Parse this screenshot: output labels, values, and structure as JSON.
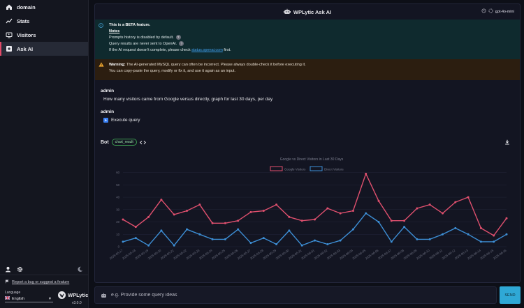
{
  "sidebar": {
    "items": [
      {
        "label": "domain",
        "icon": "home-icon"
      },
      {
        "label": "Stats",
        "icon": "chart-line-icon"
      },
      {
        "label": "Visitors",
        "icon": "monitor-icon"
      },
      {
        "label": "Ask AI",
        "icon": "plus-square-icon"
      }
    ],
    "bug_link": "Report a bug or suggest a feature",
    "language_label": "Language",
    "language_value": "English",
    "brand": "WPLytic",
    "version": "v3.0.0"
  },
  "header": {
    "title": "WPLytic Ask AI",
    "model": "gpt-4o-mini"
  },
  "info": {
    "beta": "This is a BETA feature.",
    "notes": "Notes",
    "note1": "Prompts history is disabled by default.",
    "note2": "Query results are never sent to OpenAI.",
    "note3_pre": "If the AI request doesn't complete, please check ",
    "note3_link": "status.openai.com",
    "note3_post": " first."
  },
  "warning": {
    "label": "Warning:",
    "text1": " The AI-generated MySQL query can often be incorrect. Please always double-check it before executing it.",
    "text2": "You can copy-paste the query, modify or fix it, and use it again as an input."
  },
  "messages": {
    "m1_author": "admin",
    "m1_text": "How many visitors came from Google versus directly, graph for last 30 days, per day",
    "m2_author": "admin",
    "m2_action": "Execute query",
    "bot_author": "Bot",
    "bot_badge": "chart_result"
  },
  "input": {
    "placeholder": "e.g. Provide some query ideas",
    "send_label": "SEND"
  },
  "colors": {
    "google": "#e0506e",
    "direct": "#3d8fd6"
  },
  "chart_data": {
    "type": "line",
    "title": "Google vs Direct Visitors in Last 30 Days",
    "x": [
      "2025-05-17",
      "2025-05-18",
      "2025-05-19",
      "2025-05-20",
      "2025-05-21",
      "2025-05-22",
      "2025-05-23",
      "2025-05-24",
      "2025-05-25",
      "2025-05-26",
      "2025-05-27",
      "2025-05-28",
      "2025-05-29",
      "2025-05-30",
      "2025-05-31",
      "2025-06-01",
      "2025-06-02",
      "2025-06-03",
      "2025-06-04",
      "2025-06-05",
      "2025-06-06",
      "2025-06-07",
      "2025-06-08",
      "2025-06-09",
      "2025-06-10",
      "2025-06-11",
      "2025-06-12",
      "2025-06-13",
      "2025-06-14",
      "2025-06-15",
      "2025-06-16"
    ],
    "series": [
      {
        "name": "Google Visitors",
        "values": [
          22,
          16,
          24,
          38,
          26,
          29,
          34,
          19,
          19,
          21,
          28,
          29,
          34,
          24,
          21,
          22,
          31,
          27,
          29,
          59,
          37,
          21,
          21,
          31,
          34,
          27,
          36,
          40,
          15,
          9,
          23
        ]
      },
      {
        "name": "Direct Visitors",
        "values": [
          4,
          7,
          1,
          13,
          1,
          14,
          10,
          6,
          6,
          14,
          3,
          7,
          2,
          13,
          1,
          5,
          2,
          5,
          14,
          27,
          20,
          4,
          16,
          6,
          6,
          10,
          15,
          10,
          4,
          4,
          10
        ]
      }
    ],
    "xlabel": "",
    "ylabel": "",
    "yticks": [
      0,
      10,
      20,
      30,
      40,
      50,
      60
    ],
    "ylim": [
      0,
      62
    ]
  }
}
